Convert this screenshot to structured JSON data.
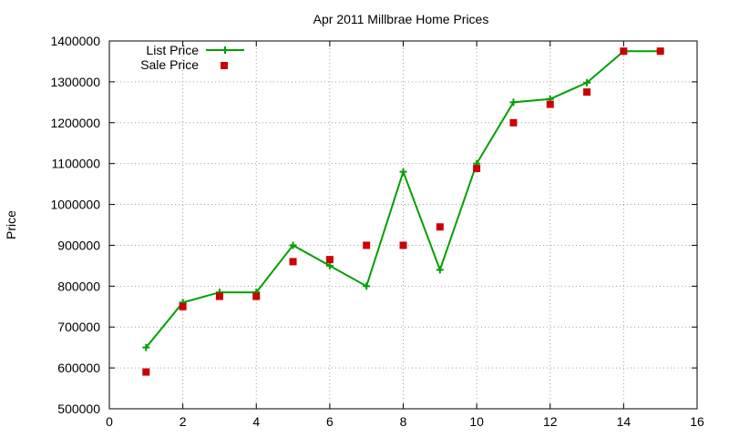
{
  "chart_data": {
    "type": "line",
    "title": "Apr 2011 Millbrae Home Prices",
    "xlabel": "",
    "ylabel": "Price",
    "xlim": [
      0,
      16
    ],
    "ylim": [
      500000,
      1400000
    ],
    "x_ticks": [
      "0",
      "2",
      "4",
      "6",
      "8",
      "10",
      "12",
      "14",
      "16"
    ],
    "y_ticks": [
      "500000",
      "600000",
      "700000",
      "800000",
      "900000",
      "1000000",
      "1100000",
      "1200000",
      "1300000",
      "1400000"
    ],
    "grid": true,
    "legend_position": "top-left",
    "series": [
      {
        "name": "List Price",
        "style": "line+cross",
        "color": "#00a000",
        "x": [
          1,
          2,
          3,
          4,
          5,
          6,
          7,
          8,
          9,
          10,
          11,
          12,
          13,
          14,
          15
        ],
        "y": [
          650000,
          760000,
          785000,
          785000,
          900000,
          850000,
          800000,
          1080000,
          840000,
          1100000,
          1250000,
          1258000,
          1298000,
          1375000,
          1375000
        ]
      },
      {
        "name": "Sale Price",
        "style": "square-points",
        "color": "#cc0000",
        "x": [
          1,
          2,
          3,
          4,
          5,
          6,
          7,
          8,
          9,
          10,
          11,
          12,
          13,
          14,
          15
        ],
        "y": [
          590000,
          750000,
          775000,
          775000,
          860000,
          865000,
          900000,
          900000,
          945000,
          1088000,
          1200000,
          1245000,
          1275000,
          1375000,
          1375000
        ]
      }
    ]
  }
}
